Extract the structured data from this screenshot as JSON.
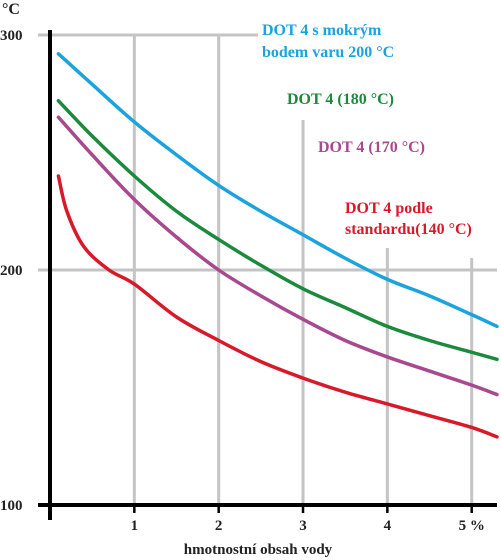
{
  "chart_data": {
    "type": "line",
    "title": "",
    "xlabel": "hmotnostní obsah vody",
    "ylabel": "",
    "unit_top": "°C",
    "xlim": [
      0,
      5.3
    ],
    "ylim": [
      100,
      300
    ],
    "y_ticks": [
      {
        "value": 100,
        "label": "100"
      },
      {
        "value": 200,
        "label": "200"
      },
      {
        "value": 300,
        "label": "300"
      }
    ],
    "x_ticks": [
      {
        "value": 1,
        "label": "1"
      },
      {
        "value": 2,
        "label": "2"
      },
      {
        "value": 3,
        "label": "3"
      },
      {
        "value": 4,
        "label": "4"
      },
      {
        "value": 5,
        "label": "5 %"
      }
    ],
    "grid": true,
    "series": [
      {
        "name": "DOT 4 s mokrým bodem varu 200 °C",
        "label_lines": [
          "DOT 4 s mokrým",
          "bodem varu 200 °C"
        ],
        "color": "#1ba3dd",
        "x": [
          0.1,
          0.5,
          1.0,
          1.5,
          2.0,
          2.5,
          3.0,
          3.5,
          4.0,
          4.5,
          5.0,
          5.3
        ],
        "y": [
          292,
          279,
          263,
          249,
          236,
          225,
          215,
          205,
          196,
          189,
          181,
          176
        ]
      },
      {
        "name": "DOT 4 (180 °C)",
        "label_lines": [
          "DOT 4 (180 °C)"
        ],
        "color": "#1b8a3c",
        "x": [
          0.1,
          0.5,
          1.0,
          1.5,
          2.0,
          2.5,
          3.0,
          3.5,
          4.0,
          4.5,
          5.0,
          5.3
        ],
        "y": [
          272,
          257,
          240,
          225,
          213,
          202,
          192,
          184,
          176,
          170,
          165,
          162
        ]
      },
      {
        "name": "DOT 4 (170 °C)",
        "label_lines": [
          "DOT 4 (170 °C)"
        ],
        "color": "#a8488f",
        "x": [
          0.1,
          0.5,
          1.0,
          1.5,
          2.0,
          2.5,
          3.0,
          3.5,
          4.0,
          4.5,
          5.0,
          5.3
        ],
        "y": [
          265,
          249,
          230,
          214,
          200,
          189,
          179,
          170,
          163,
          157,
          151,
          147
        ]
      },
      {
        "name": "DOT 4 podle standardu (140 °C)",
        "label_lines": [
          "DOT 4 podle",
          "standardu(140 °C)"
        ],
        "color": "#d8192a",
        "x": [
          0.1,
          0.2,
          0.4,
          0.7,
          1.0,
          1.5,
          2.0,
          2.5,
          3.0,
          3.5,
          4.0,
          4.5,
          5.0,
          5.3
        ],
        "y": [
          240,
          225,
          210,
          200,
          194,
          180,
          170,
          161,
          154,
          148,
          143,
          138,
          133,
          129
        ]
      }
    ]
  }
}
